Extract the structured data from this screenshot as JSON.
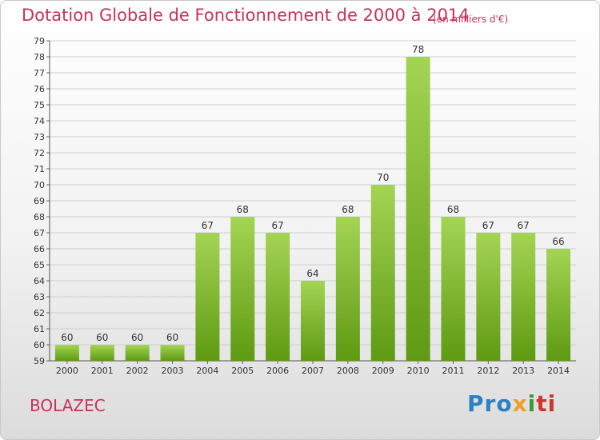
{
  "title": "Dotation Globale de Fonctionnement de 2000 à 2014",
  "unit": "(en milliers d'€)",
  "commune": "BOLAZEC",
  "logo": {
    "p1": "Pro",
    "p2": "x",
    "p3": "i",
    "p4": "ti"
  },
  "colors": {
    "title": "#c8325a",
    "bar_top": "#a4d454",
    "bar_bottom": "#5e9a12",
    "grid": "#cfcfcf"
  },
  "chart_data": {
    "type": "bar",
    "categories": [
      "2000",
      "2001",
      "2002",
      "2003",
      "2004",
      "2005",
      "2006",
      "2007",
      "2008",
      "2009",
      "2010",
      "2011",
      "2012",
      "2013",
      "2014"
    ],
    "values": [
      60,
      60,
      60,
      60,
      67,
      68,
      67,
      64,
      68,
      70,
      78,
      68,
      67,
      67,
      66
    ],
    "ylim": [
      59,
      79
    ],
    "yticks": [
      59,
      60,
      61,
      62,
      63,
      64,
      65,
      66,
      67,
      68,
      69,
      70,
      71,
      72,
      73,
      74,
      75,
      76,
      77,
      78,
      79
    ],
    "grid": true,
    "xlabel": "",
    "ylabel": ""
  }
}
